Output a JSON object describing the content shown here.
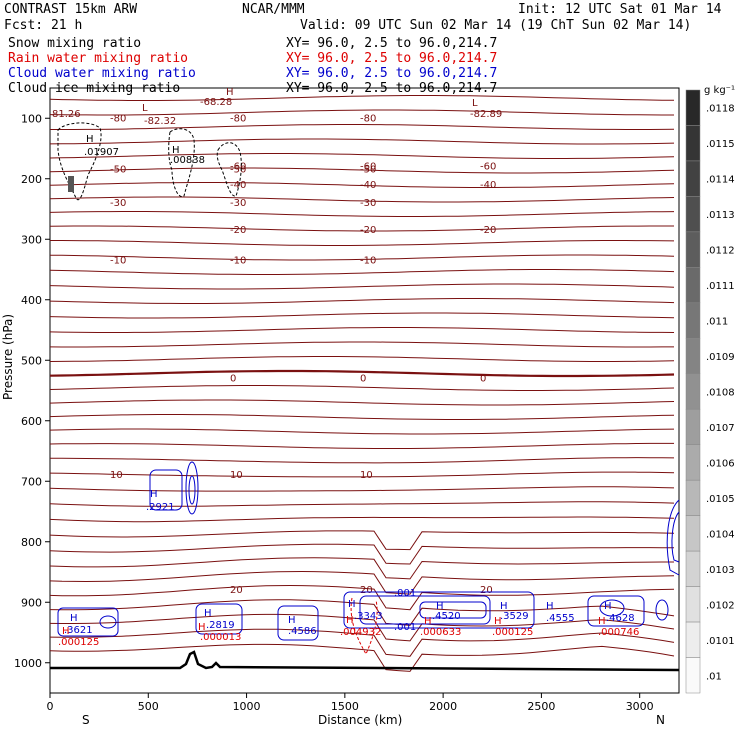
{
  "header": {
    "line1_left": "CONTRAST 15km ARW",
    "line1_center": "NCAR/MMM",
    "line1_right": "Init: 12 UTC Sat 01 Mar 14",
    "line2_left": "Fcst:   21 h",
    "line2_right": "Valid: 09 UTC Sun 02 Mar 14 (19 ChT Sun 02 Mar 14)",
    "fields": [
      {
        "name": "Snow mixing ratio",
        "xy": "XY=  96.0,  2.5 to  96.0,214.7",
        "color": "#000000"
      },
      {
        "name": "Rain water mixing ratio",
        "xy": "XY=  96.0,  2.5 to  96.0,214.7",
        "color": "#dd0000"
      },
      {
        "name": "Cloud water mixing ratio",
        "xy": "XY=  96.0,  2.5 to  96.0,214.7",
        "color": "#0000cc"
      },
      {
        "name": "Cloud ice mixing ratio",
        "xy": "XY=  96.0,  2.5 to  96.0,214.7",
        "color": "#000000"
      }
    ]
  },
  "chart_data": {
    "type": "contour-cross-section",
    "xlabel": "Distance (km)",
    "ylabel": "Pressure (hPa)",
    "xlim": [
      0,
      3200
    ],
    "ylim": [
      1050,
      50
    ],
    "x_ticks": [
      0,
      500,
      1000,
      1500,
      2000,
      2500,
      3000
    ],
    "y_ticks": [
      100,
      200,
      300,
      400,
      500,
      600,
      700,
      800,
      900,
      1000
    ],
    "end_labels": {
      "left": "S",
      "right": "N"
    },
    "colorbar": {
      "unit": "g kg⁻¹",
      "ticks": [
        ".0118",
        ".0115",
        ".0114",
        ".0113",
        ".0112",
        ".0111",
        ".011",
        ".0109",
        ".0108",
        ".0107",
        ".0106",
        ".0105",
        ".0104",
        ".0103",
        ".0102",
        ".0101",
        ".01"
      ]
    },
    "temperature_contours": [
      {
        "label": "-80",
        "pressure": 100
      },
      {
        "label": "-60",
        "pressure": 180
      },
      {
        "label": "-50",
        "pressure": 185
      },
      {
        "label": "-40",
        "pressure": 210
      },
      {
        "label": "-30",
        "pressure": 240
      },
      {
        "label": "-20",
        "pressure": 285
      },
      {
        "label": "-10",
        "pressure": 335
      },
      {
        "label": "0",
        "pressure": 530
      },
      {
        "label": "10",
        "pressure": 690
      },
      {
        "label": "20",
        "pressure": 880
      }
    ],
    "annotations": [
      {
        "text": "-68.28",
        "color": "#7a1010"
      },
      {
        "text": "-82.32",
        "color": "#7a1010"
      },
      {
        "text": "-82.89",
        "color": "#7a1010"
      },
      {
        "text": "81.26",
        "color": "#7a1010"
      },
      {
        "text": ".01907",
        "color": "#000000"
      },
      {
        "text": ".00838",
        "color": "#000000"
      },
      {
        "text": ".2921",
        "color": "#0000cc"
      },
      {
        "text": ".3621",
        "color": "#0000cc"
      },
      {
        "text": ".2819",
        "color": "#0000cc"
      },
      {
        "text": ".4586",
        "color": "#0000cc"
      },
      {
        "text": ".3343",
        "color": "#0000cc"
      },
      {
        "text": ".4520",
        "color": "#0000cc"
      },
      {
        "text": ".3529",
        "color": "#0000cc"
      },
      {
        "text": ".4555",
        "color": "#0000cc"
      },
      {
        "text": ".4628",
        "color": "#0000cc"
      },
      {
        "text": ".001",
        "color": "#0000cc"
      },
      {
        "text": ".000125",
        "color": "#dd0000"
      },
      {
        "text": ".000013",
        "color": "#dd0000"
      },
      {
        "text": ".004932",
        "color": "#dd0000"
      },
      {
        "text": ".000633",
        "color": "#dd0000"
      },
      {
        "text": ".000746",
        "color": "#dd0000"
      }
    ]
  }
}
